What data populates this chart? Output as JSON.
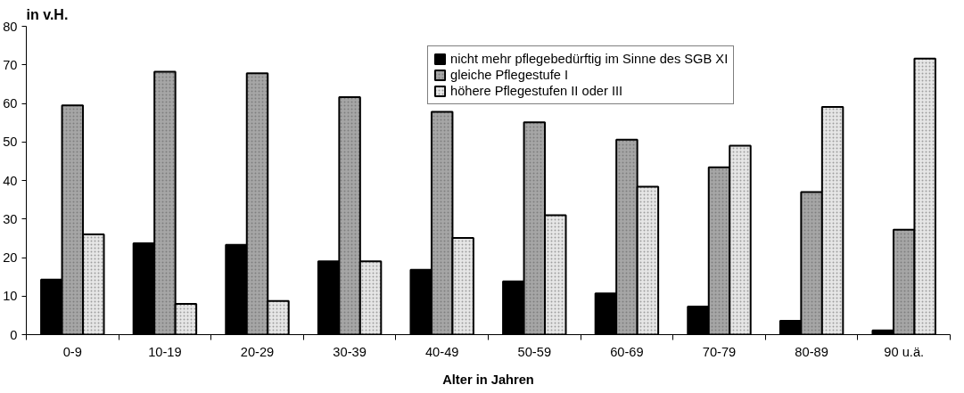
{
  "chart_data": {
    "type": "bar",
    "xlabel": "Alter in Jahren",
    "ylabel": "in v.H.",
    "categories": [
      "0-9",
      "10-19",
      "20-29",
      "30-39",
      "40-49",
      "50-59",
      "60-69",
      "70-79",
      "80-89",
      "90 u.ä."
    ],
    "series": [
      {
        "name": "nicht mehr pflegebedürftig im Sinne des SGB XI",
        "color": "#000000",
        "values": [
          14.3,
          23.7,
          23.3,
          19.0,
          16.8,
          13.8,
          10.7,
          7.3,
          3.6,
          1.1
        ]
      },
      {
        "name": "gleiche Pflegestufe I",
        "color": "#a6a6a6",
        "values": [
          59.5,
          68.2,
          67.8,
          61.6,
          57.8,
          55.1,
          50.6,
          43.4,
          37.0,
          27.2
        ]
      },
      {
        "name": "höhere Pflegestufen II oder III",
        "color": "#e6e6e6",
        "values": [
          26.0,
          8.0,
          8.7,
          19.0,
          25.1,
          31.0,
          38.4,
          49.0,
          59.1,
          71.6
        ]
      }
    ],
    "ylim": [
      0,
      80
    ],
    "yticks": [
      0,
      10,
      20,
      30,
      40,
      50,
      60,
      70,
      80
    ],
    "grid": false,
    "legend": "top"
  }
}
